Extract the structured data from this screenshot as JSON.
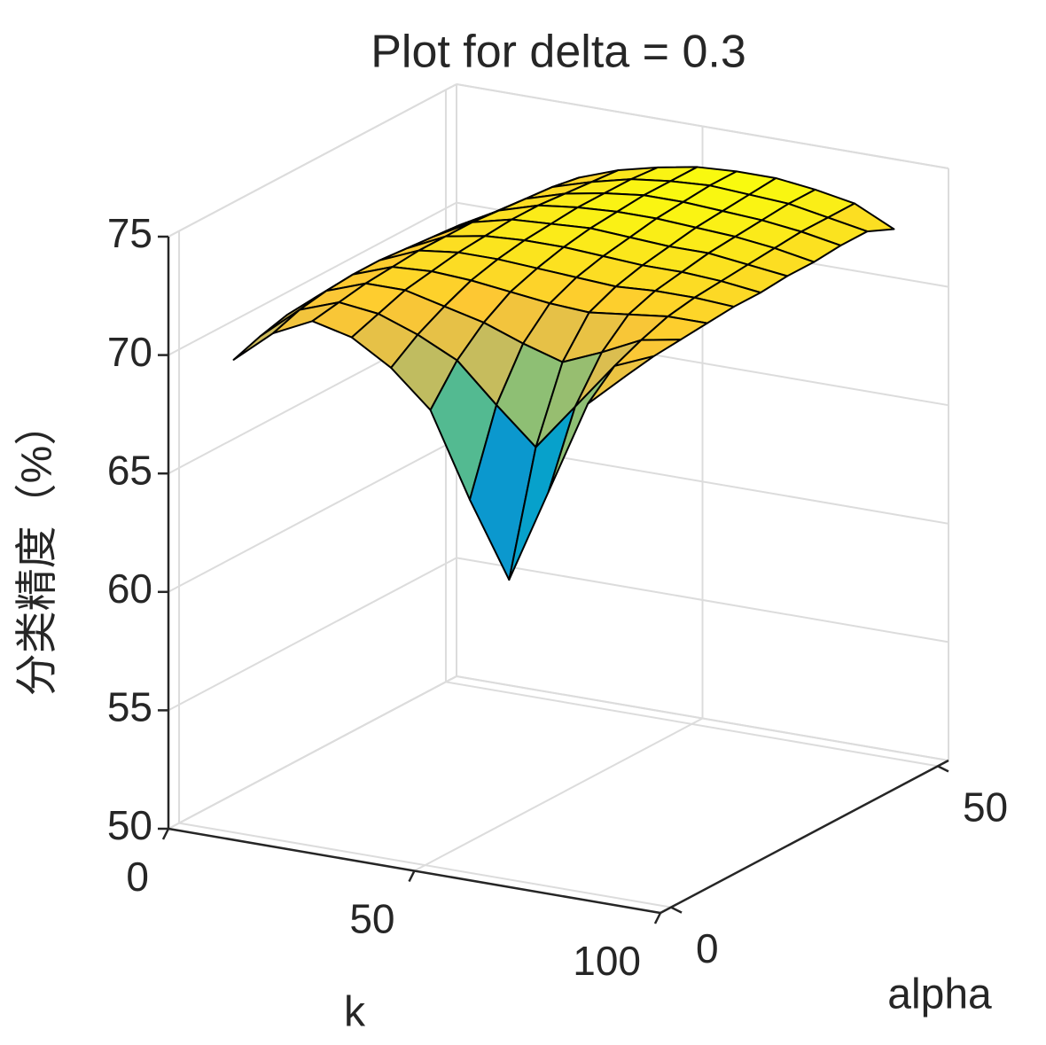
{
  "chart_data": {
    "type": "surface",
    "title": "Plot for delta = 0.3",
    "xlabel": "k",
    "ylabel": "alpha",
    "zlabel": "分类精度（%）",
    "colormap": "parula",
    "grid": true,
    "xlim": [
      0,
      100
    ],
    "xticks": [
      0,
      50,
      100
    ],
    "ylim": [
      -2,
      52
    ],
    "yticks": [
      0,
      50
    ],
    "zlim": [
      50,
      75
    ],
    "zticks": [
      50,
      55,
      60,
      65,
      70,
      75
    ],
    "x": [
      10,
      18,
      26,
      34,
      42,
      50,
      58,
      66,
      74,
      82,
      90
    ],
    "y": [
      1,
      6,
      11,
      16,
      21,
      26,
      31,
      36,
      41,
      46,
      51
    ],
    "z": [
      [
        69.8,
        71.2,
        72.0,
        71.6,
        70.6,
        69.1,
        65.6,
        62.5,
        66.5,
        70.5,
        72.0
      ],
      [
        70.2,
        71.6,
        72.2,
        72.0,
        71.4,
        70.6,
        69.0,
        67.5,
        69.5,
        71.5,
        72.2
      ],
      [
        70.5,
        71.8,
        72.4,
        72.4,
        72.0,
        71.6,
        71.0,
        70.5,
        71.2,
        72.0,
        72.3
      ],
      [
        70.6,
        71.9,
        72.5,
        72.6,
        72.5,
        72.3,
        72.1,
        72.0,
        72.2,
        72.4,
        72.4
      ],
      [
        70.5,
        71.9,
        72.6,
        72.8,
        72.8,
        72.7,
        72.6,
        72.5,
        72.6,
        72.6,
        72.5
      ],
      [
        70.4,
        71.8,
        72.6,
        72.9,
        73.0,
        73.0,
        72.9,
        72.8,
        72.8,
        72.7,
        72.5
      ],
      [
        70.2,
        71.7,
        72.6,
        73.0,
        73.1,
        73.2,
        73.1,
        73.0,
        73.0,
        72.8,
        72.6
      ],
      [
        70.0,
        71.6,
        72.5,
        73.0,
        73.2,
        73.3,
        73.3,
        73.2,
        73.1,
        72.9,
        72.6
      ],
      [
        69.8,
        71.4,
        72.4,
        72.9,
        73.2,
        73.4,
        73.4,
        73.3,
        73.2,
        73.0,
        72.7
      ],
      [
        69.6,
        71.2,
        72.3,
        72.8,
        73.2,
        73.4,
        73.5,
        73.4,
        73.3,
        73.0,
        72.7
      ],
      [
        69.4,
        71.0,
        72.1,
        72.7,
        73.1,
        73.4,
        73.5,
        73.5,
        73.3,
        73.0,
        72.2
      ]
    ]
  }
}
